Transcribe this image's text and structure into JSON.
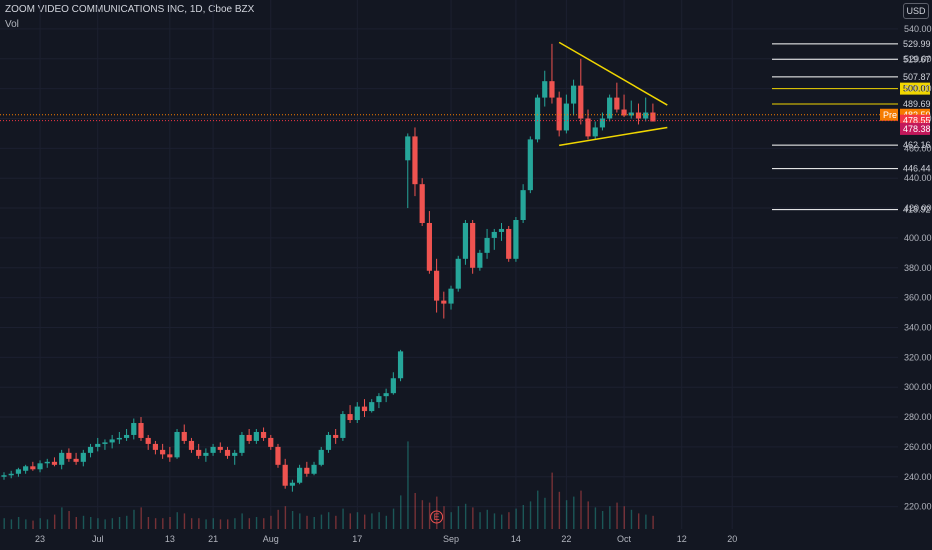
{
  "header": {
    "title": "ZOOM VIDEO COMMUNICATIONS INC, 1D, Cboe BZX",
    "volume_label": "Vol",
    "currency": "USD"
  },
  "colors": {
    "background": "#131722",
    "up": "#26a69a",
    "down": "#ef5350",
    "trendline": "#f0d600",
    "level_line": "#ffffff",
    "pre_badge": "#f57c00",
    "last_badge": "#f23645"
  },
  "chart_data": {
    "type": "candlestick",
    "ylim": [
      205,
      550
    ],
    "y_ticks": [
      220,
      240,
      260,
      280,
      300,
      320,
      340,
      360,
      380,
      400,
      420,
      440,
      460,
      480,
      500,
      520,
      540
    ],
    "x_ticks": [
      {
        "label": "23",
        "i": 5
      },
      {
        "label": "Jul",
        "i": 13
      },
      {
        "label": "13",
        "i": 23
      },
      {
        "label": "21",
        "i": 29
      },
      {
        "label": "Aug",
        "i": 37
      },
      {
        "label": "17",
        "i": 49
      },
      {
        "label": "Sep",
        "i": 62
      },
      {
        "label": "14",
        "i": 71
      },
      {
        "label": "22",
        "i": 78
      },
      {
        "label": "Oct",
        "i": 86
      },
      {
        "label": "12",
        "i": 94
      },
      {
        "label": "20",
        "i": 101
      }
    ],
    "candles": [
      [
        240,
        243,
        238,
        241,
        9
      ],
      [
        241,
        244,
        239,
        242,
        8
      ],
      [
        242,
        246,
        240,
        245,
        10
      ],
      [
        244,
        248,
        242,
        247,
        8
      ],
      [
        247,
        250,
        244,
        245,
        7
      ],
      [
        245,
        251,
        243,
        249,
        9
      ],
      [
        249,
        252,
        246,
        250,
        8
      ],
      [
        250,
        253,
        247,
        248,
        12
      ],
      [
        248,
        258,
        245,
        256,
        18
      ],
      [
        256,
        259,
        250,
        252,
        15
      ],
      [
        252,
        256,
        248,
        250,
        10
      ],
      [
        250,
        258,
        247,
        256,
        11
      ],
      [
        256,
        262,
        253,
        260,
        10
      ],
      [
        260,
        266,
        257,
        262,
        9
      ],
      [
        262,
        265,
        258,
        263,
        8
      ],
      [
        263,
        268,
        259,
        265,
        9
      ],
      [
        265,
        270,
        262,
        266,
        10
      ],
      [
        266,
        272,
        264,
        268,
        11
      ],
      [
        268,
        279,
        265,
        276,
        16
      ],
      [
        276,
        280,
        264,
        266,
        18
      ],
      [
        266,
        268,
        258,
        262,
        10
      ],
      [
        262,
        264,
        255,
        258,
        9
      ],
      [
        258,
        262,
        252,
        255,
        9
      ],
      [
        255,
        260,
        250,
        253,
        10
      ],
      [
        253,
        272,
        252,
        270,
        14
      ],
      [
        270,
        275,
        262,
        264,
        13
      ],
      [
        264,
        266,
        256,
        258,
        9
      ],
      [
        258,
        262,
        252,
        254,
        9
      ],
      [
        254,
        259,
        250,
        256,
        8
      ],
      [
        256,
        262,
        254,
        260,
        9
      ],
      [
        260,
        263,
        256,
        258,
        8
      ],
      [
        258,
        260,
        252,
        254,
        8
      ],
      [
        254,
        258,
        248,
        256,
        9
      ],
      [
        256,
        270,
        254,
        268,
        13
      ],
      [
        268,
        272,
        262,
        264,
        9
      ],
      [
        264,
        272,
        262,
        270,
        10
      ],
      [
        270,
        273,
        264,
        266,
        9
      ],
      [
        266,
        268,
        258,
        260,
        11
      ],
      [
        260,
        262,
        246,
        248,
        16
      ],
      [
        248,
        252,
        232,
        234,
        19
      ],
      [
        234,
        238,
        230,
        236,
        15
      ],
      [
        236,
        248,
        235,
        246,
        13
      ],
      [
        246,
        250,
        240,
        242,
        11
      ],
      [
        242,
        250,
        241,
        248,
        10
      ],
      [
        248,
        260,
        247,
        258,
        12
      ],
      [
        258,
        270,
        256,
        268,
        14
      ],
      [
        268,
        272,
        262,
        266,
        11
      ],
      [
        266,
        284,
        264,
        282,
        17
      ],
      [
        282,
        288,
        276,
        278,
        13
      ],
      [
        278,
        290,
        276,
        287,
        14
      ],
      [
        287,
        292,
        280,
        284,
        12
      ],
      [
        284,
        292,
        283,
        290,
        13
      ],
      [
        290,
        296,
        286,
        294,
        14
      ],
      [
        294,
        299,
        290,
        296,
        11
      ],
      [
        296,
        310,
        295,
        306,
        17
      ],
      [
        306,
        325,
        304,
        324,
        28
      ],
      [
        452,
        470,
        420,
        468,
        73
      ],
      [
        468,
        474,
        428,
        436,
        30
      ],
      [
        436,
        440,
        408,
        410,
        24
      ],
      [
        410,
        418,
        376,
        378,
        22
      ],
      [
        378,
        386,
        350,
        358,
        27
      ],
      [
        358,
        364,
        346,
        356,
        19
      ],
      [
        356,
        368,
        352,
        366,
        14
      ],
      [
        366,
        388,
        364,
        386,
        19
      ],
      [
        386,
        412,
        382,
        410,
        21
      ],
      [
        410,
        412,
        376,
        380,
        18
      ],
      [
        380,
        392,
        378,
        390,
        14
      ],
      [
        390,
        406,
        386,
        400,
        16
      ],
      [
        400,
        406,
        392,
        404,
        13
      ],
      [
        404,
        410,
        398,
        406,
        12
      ],
      [
        406,
        408,
        384,
        386,
        14
      ],
      [
        386,
        414,
        384,
        412,
        17
      ],
      [
        412,
        436,
        410,
        432,
        20
      ],
      [
        432,
        468,
        430,
        466,
        23
      ],
      [
        466,
        496,
        464,
        494,
        32
      ],
      [
        494,
        512,
        488,
        505,
        26
      ],
      [
        505,
        530,
        490,
        494,
        47
      ],
      [
        494,
        498,
        468,
        472,
        31
      ],
      [
        472,
        496,
        470,
        490,
        24
      ],
      [
        490,
        506,
        482,
        502,
        27
      ],
      [
        502,
        520,
        476,
        480,
        32
      ],
      [
        480,
        486,
        466,
        468,
        23
      ],
      [
        468,
        478,
        466,
        474,
        18
      ],
      [
        474,
        484,
        472,
        480,
        15
      ],
      [
        480,
        496,
        478,
        494,
        19
      ],
      [
        494,
        504,
        484,
        486,
        22
      ],
      [
        486,
        496,
        481,
        482,
        19
      ],
      [
        482,
        492,
        480,
        484,
        16
      ],
      [
        484,
        490,
        476,
        480,
        13
      ],
      [
        480,
        494,
        478,
        484,
        12
      ],
      [
        484,
        490,
        478,
        478,
        11
      ]
    ],
    "price_levels": [
      529.99,
      519.67,
      507.87,
      500.01,
      489.69,
      462.16,
      446.44,
      418.92
    ],
    "trendlines": [
      {
        "from": [
          77,
          531
        ],
        "to": [
          92,
          489
        ]
      },
      {
        "from": [
          77,
          462
        ],
        "to": [
          92,
          474
        ]
      }
    ],
    "pre_price": 482.5,
    "pre_label": "Pre",
    "last_prices": [
      478.55,
      478.38
    ],
    "earnings_marker": {
      "label": "E",
      "i": 60
    }
  }
}
